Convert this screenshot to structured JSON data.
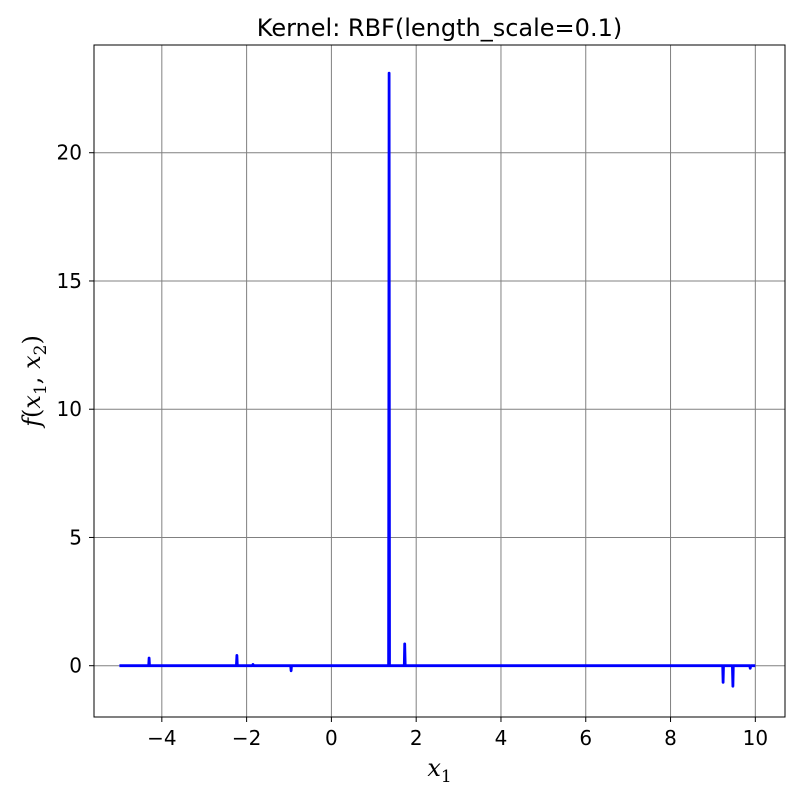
{
  "chart_data": {
    "type": "line",
    "title": "Kernel: RBF(length_scale=0.1)",
    "xlabel": {
      "base": "x",
      "sub": "1"
    },
    "ylabel": {
      "f": "f",
      "open": "(",
      "x1": "x",
      "s1": "1",
      "comma": ", ",
      "x2": "x",
      "s2": "2",
      "close": ")"
    },
    "xlim": [
      -5.6,
      10.7
    ],
    "ylim": [
      -2.0,
      24.2
    ],
    "xticks": [
      -4,
      -2,
      0,
      2,
      4,
      6,
      8,
      10
    ],
    "xtick_labels": [
      "−4",
      "−2",
      "0",
      "2",
      "4",
      "6",
      "8",
      "10"
    ],
    "yticks": [
      0,
      5,
      10,
      15,
      20
    ],
    "ytick_labels": [
      "0",
      "5",
      "10",
      "15",
      "20"
    ],
    "grid": true,
    "grid_color": "#808080",
    "series": [
      {
        "color": "#0000ff",
        "x": [
          -5.0,
          -4.31,
          -4.3,
          -4.29,
          -2.24,
          -2.23,
          -2.22,
          -1.86,
          -1.85,
          -1.84,
          -0.96,
          -0.95,
          -0.94,
          1.35,
          1.36,
          1.37,
          1.72,
          1.73,
          1.74,
          9.23,
          9.24,
          9.25,
          9.46,
          9.47,
          9.48,
          9.87,
          9.88,
          9.89,
          10.0
        ],
        "y": [
          0,
          0,
          0.3,
          0,
          0,
          0.4,
          0,
          0,
          0.05,
          0,
          0,
          -0.2,
          0,
          0,
          23.1,
          0,
          0,
          0.85,
          0,
          0,
          -0.65,
          0,
          0,
          -0.8,
          0,
          0,
          -0.1,
          0,
          0
        ]
      }
    ]
  }
}
